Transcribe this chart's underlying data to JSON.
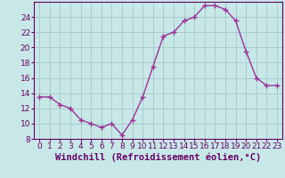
{
  "x": [
    0,
    1,
    2,
    3,
    4,
    5,
    6,
    7,
    8,
    9,
    10,
    11,
    12,
    13,
    14,
    15,
    16,
    17,
    18,
    19,
    20,
    21,
    22,
    23
  ],
  "y": [
    13.5,
    13.5,
    12.5,
    12.0,
    10.5,
    10.0,
    9.5,
    10.0,
    8.5,
    10.5,
    13.5,
    17.5,
    21.5,
    22.0,
    23.5,
    24.0,
    25.5,
    25.5,
    25.0,
    23.5,
    19.5,
    16.0,
    15.0,
    15.0
  ],
  "line_color": "#993399",
  "marker": "+",
  "marker_size": 4,
  "bg_color": "#c8e8e8",
  "grid_color": "#aacccc",
  "xlabel": "Windchill (Refroidissement éolien,°C)",
  "xlim": [
    -0.5,
    23.5
  ],
  "ylim": [
    8,
    26
  ],
  "yticks": [
    8,
    10,
    12,
    14,
    16,
    18,
    20,
    22,
    24
  ],
  "xticks": [
    0,
    1,
    2,
    3,
    4,
    5,
    6,
    7,
    8,
    9,
    10,
    11,
    12,
    13,
    14,
    15,
    16,
    17,
    18,
    19,
    20,
    21,
    22,
    23
  ],
  "tick_label_size": 6.5,
  "xlabel_size": 7.5,
  "line_color_hex": "#993399",
  "axis_color": "#660066",
  "tick_color": "#660066",
  "spine_color": "#660066"
}
